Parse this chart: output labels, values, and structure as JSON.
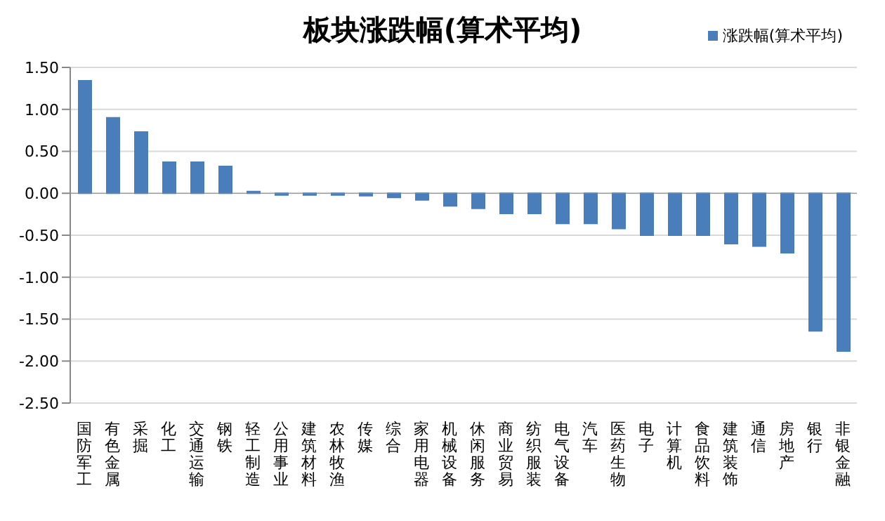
{
  "chart_data": {
    "type": "bar",
    "title": "板块涨跌幅(算术平均)",
    "categories": [
      "国防军工",
      "有色金属",
      "采掘",
      "化工",
      "交通运输",
      "钢铁",
      "轻工制造",
      "公用事业",
      "建筑材料",
      "农林牧渔",
      "传媒",
      "综合",
      "家用电器",
      "机械设备",
      "休闲服务",
      "商业贸易",
      "纺织服装",
      "电气设备",
      "汽车",
      "医药生物",
      "电子",
      "计算机",
      "食品饮料",
      "建筑装饰",
      "通信",
      "房地产",
      "银行",
      "非银金融"
    ],
    "series": [
      {
        "name": "涨跌幅(算术平均)",
        "color": "#4a7ebb",
        "values": [
          1.34,
          0.9,
          0.73,
          0.37,
          0.37,
          0.32,
          0.02,
          -0.02,
          -0.02,
          -0.02,
          -0.03,
          -0.05,
          -0.08,
          -0.15,
          -0.18,
          -0.24,
          -0.24,
          -0.36,
          -0.36,
          -0.42,
          -0.5,
          -0.5,
          -0.5,
          -0.6,
          -0.63,
          -0.71,
          -1.64,
          -1.88
        ]
      }
    ],
    "ylim": [
      -2.5,
      1.5
    ],
    "yticks": [
      {
        "value": -2.5,
        "label": "-2.50"
      },
      {
        "value": -2,
        "label": "-2.00"
      },
      {
        "value": -1.5,
        "label": "-1.50"
      },
      {
        "value": -1,
        "label": "-1.00"
      },
      {
        "value": -0.5,
        "label": "-0.50"
      },
      {
        "value": 0,
        "label": "0.00"
      },
      {
        "value": 0.5,
        "label": "0.50"
      },
      {
        "value": 1,
        "label": "1.00"
      },
      {
        "value": 1.5,
        "label": "1.50"
      }
    ],
    "grid": "y",
    "legend": "top right"
  }
}
